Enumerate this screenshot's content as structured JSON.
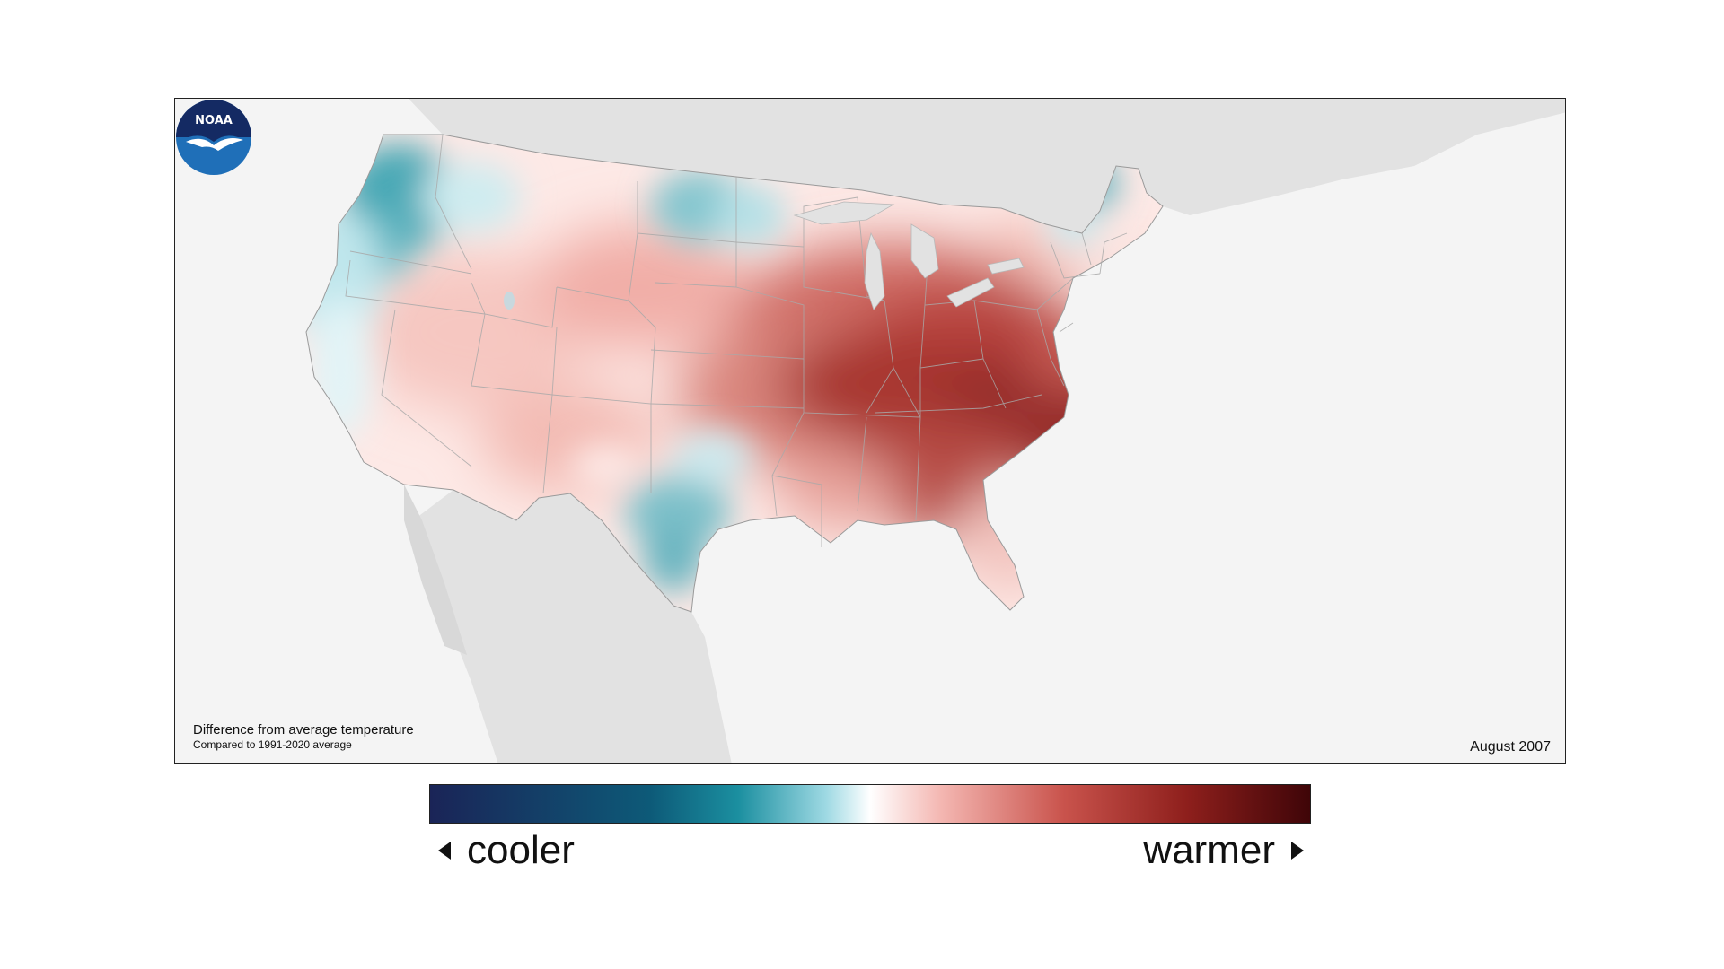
{
  "map": {
    "caption_main": "Difference from average temperature",
    "caption_sub": "Compared to 1991-2020 average",
    "date": "August 2007",
    "logo_text": "NOAA",
    "anomaly_regions": [
      {
        "region": "Pacific Northwest",
        "anomaly": "cooler"
      },
      {
        "region": "North Dakota",
        "anomaly": "cooler"
      },
      {
        "region": "Central and South Texas",
        "anomaly": "cooler"
      },
      {
        "region": "Northern Maine",
        "anomaly": "cooler"
      },
      {
        "region": "Central and Southeast US",
        "anomaly": "much warmer"
      },
      {
        "region": "Great Basin and Southwest",
        "anomaly": "warmer"
      },
      {
        "region": "Northeast",
        "anomaly": "slightly warmer"
      }
    ]
  },
  "legend": {
    "cooler_label": "cooler",
    "warmer_label": "warmer",
    "colors": [
      "#1a2457",
      "#0d5a78",
      "#1b8fa0",
      "#9ed9e3",
      "#ffffff",
      "#f4b7b2",
      "#c9534c",
      "#8e1f1c",
      "#3f0508"
    ]
  }
}
